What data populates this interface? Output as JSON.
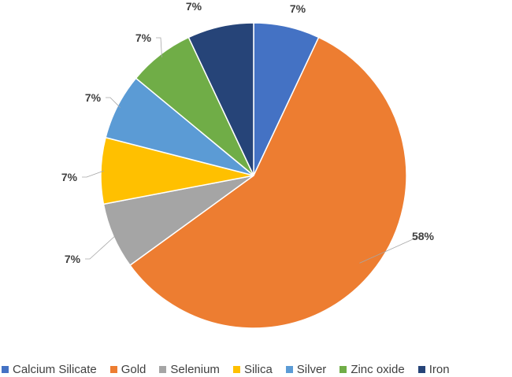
{
  "chart_data": {
    "type": "pie",
    "title": "",
    "categories": [
      "Calcium Silicate",
      "Gold",
      "Selenium",
      "Silica",
      "Silver",
      "Zinc oxide",
      "Iron"
    ],
    "values": [
      7,
      58,
      7,
      7,
      7,
      7,
      7
    ],
    "data_labels": [
      "7%",
      "58%",
      "7%",
      "7%",
      "7%",
      "7%",
      "7%"
    ],
    "colors": [
      "#4472C4",
      "#ED7D31",
      "#A5A5A5",
      "#FFC000",
      "#5B9BD5",
      "#70AD47",
      "#264478"
    ],
    "start_angle": "top, clockwise",
    "legend_position": "bottom"
  }
}
